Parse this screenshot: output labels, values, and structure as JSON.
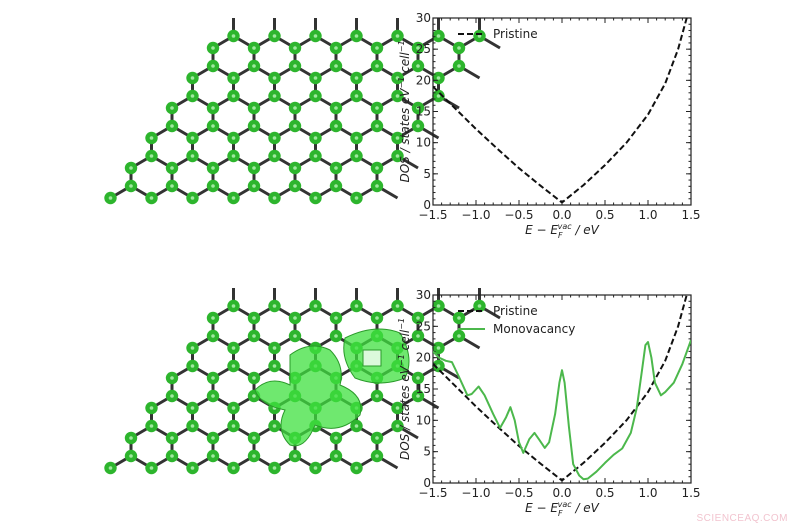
{
  "watermark": "SCIENCEAQ.COM",
  "panels": [
    {
      "name": "pristine-graphene-structure",
      "description": "Graphene lattice, pristine"
    },
    {
      "name": "monovacancy-graphene-structure",
      "description": "Graphene lattice with monovacancy and green charge-density isosurface"
    }
  ],
  "colors": {
    "pristine": "#111111",
    "monovacancy": "#4cb84c",
    "atom": "#2db52d",
    "bond": "#333333"
  },
  "chart_data": [
    {
      "type": "line",
      "title": "",
      "xlabel": "E − E_F^vac / eV",
      "ylabel": "DOS / states eV⁻¹ cell⁻¹",
      "xlim": [
        -1.5,
        1.5
      ],
      "ylim": [
        0,
        30
      ],
      "xticks": [
        "−1.5",
        "−1.0",
        "−0.5",
        "0.0",
        "0.5",
        "1.0",
        "1.5"
      ],
      "yticks": [
        "0",
        "5",
        "10",
        "15",
        "20",
        "25",
        "30"
      ],
      "grid": false,
      "legend_position": "upper left",
      "series": [
        {
          "name": "Pristine",
          "style": "dashed",
          "color": "#111111",
          "x": [
            -1.5,
            -1.25,
            -1.0,
            -0.75,
            -0.5,
            -0.25,
            0.0,
            0.25,
            0.5,
            0.75,
            1.0,
            1.2,
            1.35,
            1.45
          ],
          "y": [
            19,
            15.6,
            12.2,
            9.0,
            5.9,
            3.1,
            0.4,
            3.2,
            6.4,
            10.0,
            14.5,
            19.5,
            25,
            30
          ]
        }
      ]
    },
    {
      "type": "line",
      "title": "",
      "xlabel": "E − E_F^vac / eV",
      "ylabel": "DOS / states eV⁻¹ cell⁻¹",
      "xlim": [
        -1.5,
        1.5
      ],
      "ylim": [
        0,
        30
      ],
      "xticks": [
        "−1.5",
        "−1.0",
        "−0.5",
        "0.0",
        "0.5",
        "1.0",
        "1.5"
      ],
      "yticks": [
        "0",
        "5",
        "10",
        "15",
        "20",
        "25",
        "30"
      ],
      "grid": false,
      "legend_position": "upper left",
      "series": [
        {
          "name": "Pristine",
          "style": "dashed",
          "color": "#111111",
          "x": [
            -1.5,
            -1.25,
            -1.0,
            -0.75,
            -0.5,
            -0.25,
            0.0,
            0.25,
            0.5,
            0.75,
            1.0,
            1.2,
            1.35,
            1.45
          ],
          "y": [
            19,
            15.6,
            12.2,
            9.0,
            5.9,
            3.1,
            0.4,
            3.2,
            6.4,
            10.0,
            14.5,
            19.5,
            25,
            30
          ]
        },
        {
          "name": "Monovacancy",
          "style": "solid",
          "color": "#4cb84c",
          "x": [
            -1.5,
            -1.43,
            -1.35,
            -1.28,
            -1.2,
            -1.1,
            -1.05,
            -0.97,
            -0.9,
            -0.8,
            -0.72,
            -0.65,
            -0.6,
            -0.55,
            -0.5,
            -0.45,
            -0.38,
            -0.32,
            -0.27,
            -0.2,
            -0.15,
            -0.08,
            -0.03,
            0.0,
            0.03,
            0.08,
            0.13,
            0.2,
            0.25,
            0.3,
            0.4,
            0.5,
            0.6,
            0.7,
            0.8,
            0.87,
            0.93,
            0.97,
            1.0,
            1.04,
            1.08,
            1.15,
            1.2,
            1.3,
            1.4,
            1.5
          ],
          "y": [
            21,
            20,
            19.5,
            19.3,
            17,
            14,
            14.2,
            15.4,
            14,
            11,
            8.8,
            10.5,
            12.1,
            10,
            6.5,
            4.8,
            7,
            8,
            7,
            5.6,
            6.5,
            11,
            16,
            18,
            16,
            9,
            3,
            1.2,
            0.6,
            0.7,
            1.8,
            3.2,
            4.5,
            5.5,
            8,
            12,
            18,
            22,
            22.5,
            20,
            16,
            14,
            14.5,
            16,
            19,
            22.8
          ]
        }
      ]
    }
  ]
}
